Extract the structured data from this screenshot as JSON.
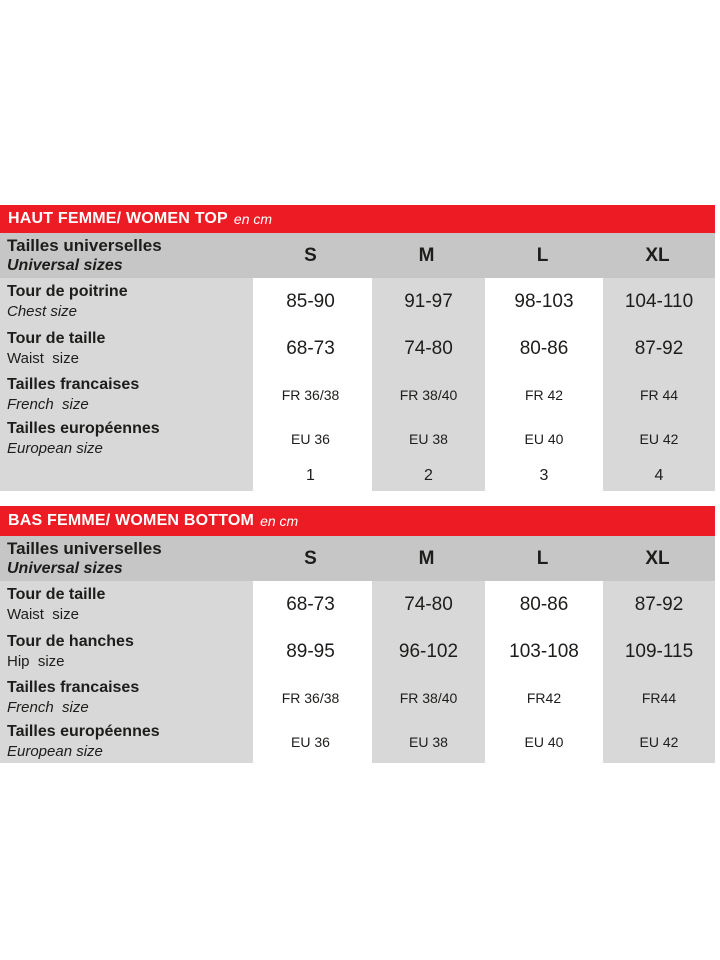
{
  "colors": {
    "accent_red": "#ed1c24",
    "header_row_gray": "#c6c6c6",
    "cell_gray": "#d8d8d8",
    "text": "#1d1d1b"
  },
  "tables": [
    {
      "title": "HAUT FEMME/ WOMEN TOP",
      "unit": "en cm",
      "header": {
        "label_fr": "Tailles universelles",
        "label_en": "Universal sizes"
      },
      "columns": [
        "S",
        "M",
        "L",
        "XL"
      ],
      "rows": [
        {
          "label_fr": "Tour de poitrine",
          "label_en": "Chest size",
          "values": [
            "85-90",
            "91-97",
            "98-103",
            "104-110"
          ]
        },
        {
          "label_fr": "Tour de taille",
          "label_en": "Waist  size",
          "values": [
            "68-73",
            "74-80",
            "80-86",
            "87-92"
          ]
        },
        {
          "label_fr": "Tailles francaises",
          "label_en": "French  size",
          "values": [
            "FR 36/38",
            "FR 38/40",
            "FR 42",
            "FR 44"
          ]
        },
        {
          "label_fr": "Tailles européennes",
          "label_en": "European size",
          "values": [
            "EU 36",
            "EU 38",
            "EU 40",
            "EU 42"
          ]
        }
      ],
      "footer_values": [
        "1",
        "2",
        "3",
        "4"
      ]
    },
    {
      "title": "BAS FEMME/ WOMEN BOTTOM",
      "unit": "en cm",
      "header": {
        "label_fr": "Tailles universelles",
        "label_en": "Universal sizes"
      },
      "columns": [
        "S",
        "M",
        "L",
        "XL"
      ],
      "rows": [
        {
          "label_fr": "Tour de taille",
          "label_en": "Waist  size",
          "values": [
            "68-73",
            "74-80",
            "80-86",
            "87-92"
          ]
        },
        {
          "label_fr": "Tour de hanches",
          "label_en": "Hip  size",
          "values": [
            "89-95",
            "96-102",
            "103-108",
            "109-115"
          ]
        },
        {
          "label_fr": "Tailles francaises",
          "label_en": "French  size",
          "values": [
            "FR 36/38",
            "FR 38/40",
            "FR42",
            "FR44"
          ]
        },
        {
          "label_fr": "Tailles européennes",
          "label_en": "European size",
          "values": [
            "EU 36",
            "EU 38",
            "EU 40",
            "EU 42"
          ]
        }
      ]
    }
  ]
}
